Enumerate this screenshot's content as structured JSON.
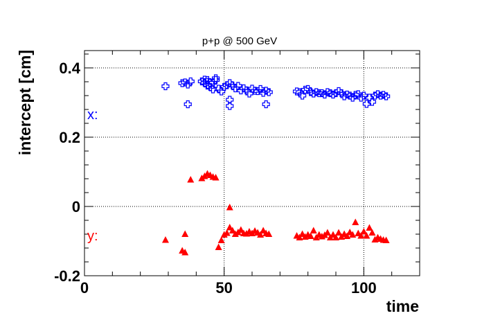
{
  "chart_data": {
    "type": "scatter",
    "title": "p+p @ 500 GeV",
    "xlabel": "time",
    "ylabel": "intercept [cm]",
    "xlim": [
      0,
      120
    ],
    "ylim": [
      -0.2,
      0.45
    ],
    "xticks": [
      0,
      50,
      100
    ],
    "xtick_labels": [
      "0",
      "50",
      "100"
    ],
    "yticks": [
      -0.2,
      0,
      0.2,
      0.4
    ],
    "ytick_labels": [
      "-0.2",
      "0",
      "0.2",
      "0.4"
    ],
    "grid": true,
    "series": [
      {
        "name": "x:",
        "color": "#0000ff",
        "marker": "open-cross",
        "points": [
          [
            29,
            0.347
          ],
          [
            35,
            0.356
          ],
          [
            36,
            0.358
          ],
          [
            37,
            0.295
          ],
          [
            37,
            0.352
          ],
          [
            38,
            0.361
          ],
          [
            42,
            0.361
          ],
          [
            43,
            0.357
          ],
          [
            43,
            0.366
          ],
          [
            44,
            0.349
          ],
          [
            44,
            0.365
          ],
          [
            45,
            0.357
          ],
          [
            45,
            0.345
          ],
          [
            46,
            0.338
          ],
          [
            46,
            0.357
          ],
          [
            47,
            0.37
          ],
          [
            47,
            0.365
          ],
          [
            48,
            0.34
          ],
          [
            49,
            0.332
          ],
          [
            50,
            0.345
          ],
          [
            51,
            0.35
          ],
          [
            52,
            0.356
          ],
          [
            52,
            0.308
          ],
          [
            52,
            0.29
          ],
          [
            53,
            0.349
          ],
          [
            54,
            0.341
          ],
          [
            55,
            0.348
          ],
          [
            56,
            0.335
          ],
          [
            57,
            0.341
          ],
          [
            58,
            0.335
          ],
          [
            59,
            0.326
          ],
          [
            60,
            0.34
          ],
          [
            61,
            0.334
          ],
          [
            62,
            0.333
          ],
          [
            63,
            0.339
          ],
          [
            64,
            0.328
          ],
          [
            65,
            0.334
          ],
          [
            65,
            0.295
          ],
          [
            66,
            0.33
          ],
          [
            76,
            0.332
          ],
          [
            77,
            0.33
          ],
          [
            78,
            0.32
          ],
          [
            79,
            0.337
          ],
          [
            80,
            0.339
          ],
          [
            81,
            0.33
          ],
          [
            82,
            0.326
          ],
          [
            83,
            0.33
          ],
          [
            84,
            0.327
          ],
          [
            85,
            0.327
          ],
          [
            86,
            0.323
          ],
          [
            87,
            0.33
          ],
          [
            88,
            0.327
          ],
          [
            89,
            0.323
          ],
          [
            90,
            0.327
          ],
          [
            91,
            0.333
          ],
          [
            92,
            0.327
          ],
          [
            93,
            0.318
          ],
          [
            94,
            0.323
          ],
          [
            95,
            0.32
          ],
          [
            96,
            0.314
          ],
          [
            97,
            0.322
          ],
          [
            98,
            0.324
          ],
          [
            99,
            0.314
          ],
          [
            100,
            0.32
          ],
          [
            101,
            0.296
          ],
          [
            102,
            0.314
          ],
          [
            103,
            0.302
          ],
          [
            104,
            0.32
          ],
          [
            105,
            0.324
          ],
          [
            106,
            0.32
          ],
          [
            107,
            0.322
          ],
          [
            108,
            0.318
          ]
        ]
      },
      {
        "name": "y:",
        "color": "#ff0000",
        "marker": "filled-triangle",
        "points": [
          [
            29,
            -0.097
          ],
          [
            35,
            -0.128
          ],
          [
            36,
            -0.133
          ],
          [
            36,
            -0.08
          ],
          [
            38,
            0.077
          ],
          [
            42,
            0.081
          ],
          [
            43,
            0.087
          ],
          [
            44,
            0.094
          ],
          [
            45,
            0.09
          ],
          [
            46,
            0.085
          ],
          [
            47,
            0.083
          ],
          [
            48,
            -0.118
          ],
          [
            49,
            -0.098
          ],
          [
            50,
            -0.082
          ],
          [
            51,
            -0.077
          ],
          [
            52,
            -0.061
          ],
          [
            52,
            -0.003
          ],
          [
            53,
            -0.07
          ],
          [
            54,
            -0.08
          ],
          [
            55,
            -0.075
          ],
          [
            56,
            -0.068
          ],
          [
            57,
            -0.078
          ],
          [
            58,
            -0.079
          ],
          [
            59,
            -0.073
          ],
          [
            60,
            -0.078
          ],
          [
            61,
            -0.071
          ],
          [
            62,
            -0.076
          ],
          [
            63,
            -0.082
          ],
          [
            64,
            -0.07
          ],
          [
            65,
            -0.078
          ],
          [
            66,
            -0.08
          ],
          [
            76,
            -0.085
          ],
          [
            77,
            -0.09
          ],
          [
            78,
            -0.08
          ],
          [
            79,
            -0.088
          ],
          [
            80,
            -0.082
          ],
          [
            81,
            -0.086
          ],
          [
            82,
            -0.07
          ],
          [
            83,
            -0.09
          ],
          [
            84,
            -0.082
          ],
          [
            85,
            -0.087
          ],
          [
            86,
            -0.083
          ],
          [
            87,
            -0.076
          ],
          [
            88,
            -0.09
          ],
          [
            89,
            -0.082
          ],
          [
            90,
            -0.09
          ],
          [
            91,
            -0.076
          ],
          [
            92,
            -0.088
          ],
          [
            93,
            -0.08
          ],
          [
            94,
            -0.086
          ],
          [
            95,
            -0.075
          ],
          [
            96,
            -0.082
          ],
          [
            97,
            -0.046
          ],
          [
            98,
            -0.078
          ],
          [
            99,
            -0.085
          ],
          [
            100,
            -0.073
          ],
          [
            101,
            -0.085
          ],
          [
            102,
            -0.062
          ],
          [
            103,
            -0.076
          ],
          [
            104,
            -0.096
          ],
          [
            105,
            -0.09
          ],
          [
            106,
            -0.094
          ],
          [
            107,
            -0.097
          ],
          [
            108,
            -0.098
          ]
        ]
      }
    ]
  }
}
